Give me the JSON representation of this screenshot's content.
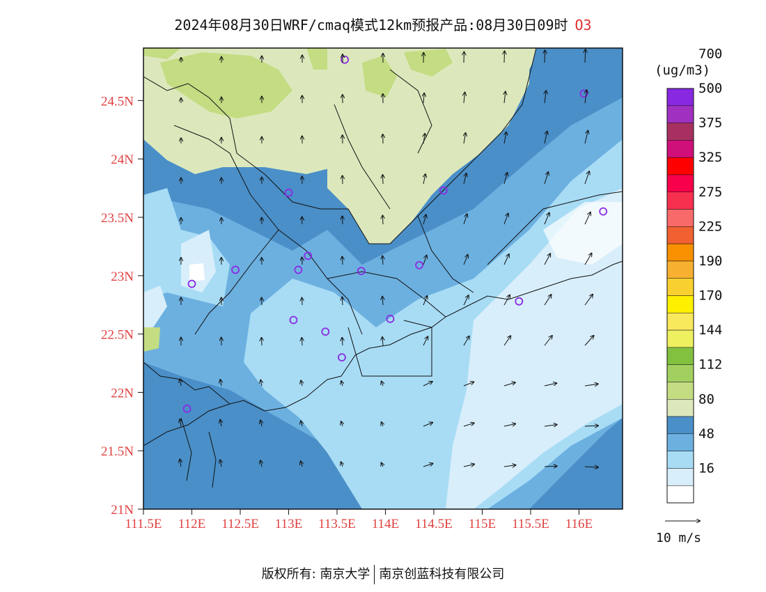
{
  "title": {
    "text": "2024年08月30日WRF/cmaq模式12km预报产品:08月30日09时",
    "pollutant": "O3"
  },
  "axes": {
    "lat_labels": [
      "21N",
      "21.5N",
      "22N",
      "22.5N",
      "23N",
      "23.5N",
      "24N",
      "24.5N"
    ],
    "lat_values": [
      21,
      21.5,
      22,
      22.5,
      23,
      23.5,
      24,
      24.5
    ],
    "lon_labels": [
      "111.5E",
      "112E",
      "112.5E",
      "113E",
      "113.5E",
      "114E",
      "114.5E",
      "115E",
      "115.5E",
      "116E"
    ],
    "lon_values": [
      111.5,
      112,
      112.5,
      113,
      113.5,
      114,
      114.5,
      115,
      115.5,
      116
    ],
    "lon_range": [
      111.5,
      116.45
    ],
    "lat_range": [
      21,
      24.95
    ]
  },
  "legend": {
    "unit": "(ug/m3)",
    "labels": [
      "16",
      "48",
      "80",
      "112",
      "144",
      "170",
      "190",
      "225",
      "275",
      "325",
      "375",
      "500",
      "700"
    ],
    "colors": [
      "#ffffff",
      "#d8eefa",
      "#a8dcf5",
      "#6cb0e0",
      "#4a8fc8",
      "#dce8bc",
      "#c4dc82",
      "#a2d060",
      "#82c040",
      "#eef060",
      "#f8e85c",
      "#fff000",
      "#f8d030",
      "#f8b030",
      "#f89000",
      "#f06030",
      "#f86a6a",
      "#f83050",
      "#f8004a",
      "#ff0000",
      "#d0107a",
      "#a83060",
      "#a030c0",
      "#8828e0"
    ],
    "colors_note": ""
  },
  "wind_reference": "10 m/s",
  "stations": [
    {
      "lon": 113.58,
      "lat": 24.85
    },
    {
      "lon": 116.05,
      "lat": 24.56
    },
    {
      "lon": 116.25,
      "lat": 23.55
    },
    {
      "lon": 113.0,
      "lat": 23.71
    },
    {
      "lon": 114.6,
      "lat": 23.73
    },
    {
      "lon": 112.45,
      "lat": 23.05
    },
    {
      "lon": 113.1,
      "lat": 23.05
    },
    {
      "lon": 113.2,
      "lat": 23.17
    },
    {
      "lon": 113.75,
      "lat": 23.04
    },
    {
      "lon": 114.35,
      "lat": 23.09
    },
    {
      "lon": 112.0,
      "lat": 22.93
    },
    {
      "lon": 115.38,
      "lat": 22.78
    },
    {
      "lon": 113.05,
      "lat": 22.62
    },
    {
      "lon": 114.05,
      "lat": 22.63
    },
    {
      "lon": 113.38,
      "lat": 22.52
    },
    {
      "lon": 113.55,
      "lat": 22.3
    },
    {
      "lon": 111.95,
      "lat": 21.86
    }
  ],
  "copyright": {
    "left": "版权所有: 南京大学",
    "right": "南京创蓝科技有限公司"
  }
}
